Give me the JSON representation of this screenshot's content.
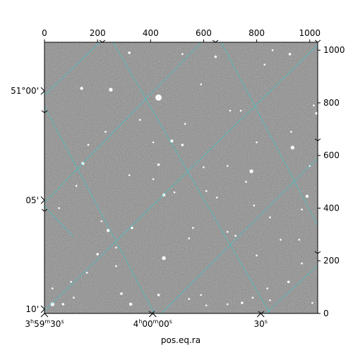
{
  "chart_data": {
    "type": "image",
    "xlabel": "pos.eq.ra",
    "ylabel": "",
    "pixel_axes": {
      "x_ticks": [
        0,
        200,
        400,
        600,
        800,
        1000
      ],
      "y_ticks": [
        0,
        200,
        400,
        600,
        800,
        1000
      ],
      "xlim": [
        0,
        1030
      ],
      "ylim": [
        0,
        1030
      ]
    },
    "world_axes": {
      "ra_tick_labels": [
        {
          "h": "3",
          "m": "59",
          "s": "30",
          "value_px": 0
        },
        {
          "h": "4",
          "m": "00",
          "s": "00",
          "value_px": 408
        },
        {
          "h": "",
          "m": "",
          "s": "30",
          "value_px": 815
        }
      ],
      "dec_tick_labels": [
        {
          "text": "51°00'",
          "value_px": 845
        },
        {
          "text": "05'",
          "value_px": 430
        },
        {
          "text": "10'",
          "value_px": 16
        }
      ]
    },
    "grid": true,
    "grid_color": "#22d3d3",
    "image_colormap": "gray",
    "background_color": "#6f6f6f"
  }
}
